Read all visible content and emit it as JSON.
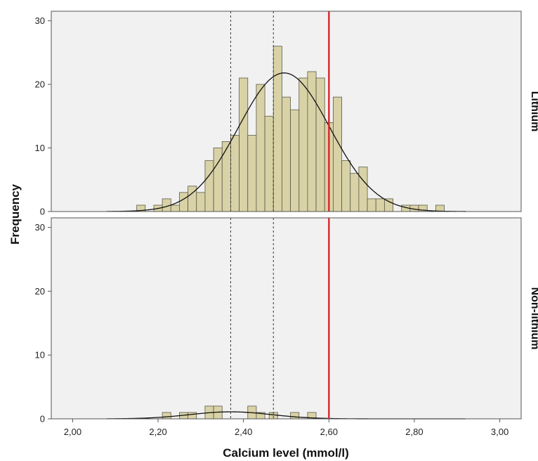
{
  "chart_data": {
    "type": "bar",
    "xlabel": "Calcium level (mmol/l)",
    "ylabel": "Frequency",
    "xlim": [
      1.95,
      3.05
    ],
    "ylim": [
      0,
      31.5
    ],
    "x_ticks": [
      2.0,
      2.2,
      2.4,
      2.6,
      2.8,
      3.0
    ],
    "x_tick_labels": [
      "2,00",
      "2,20",
      "2,40",
      "2,60",
      "2,80",
      "3,00"
    ],
    "y_ticks": [
      0,
      10,
      20,
      30
    ],
    "y_tick_labels": [
      "0",
      "10",
      "20",
      "30"
    ],
    "bin_width": 0.02,
    "grid": false,
    "reference_lines": {
      "dashed": [
        2.37,
        2.47
      ],
      "red": [
        2.6
      ]
    },
    "colors": {
      "bar_fill": "#d9d2a6",
      "bar_stroke": "#5a5a4a",
      "panel_bg": "#f1f1f1",
      "curve": "#111111",
      "red_line": "#d8262c",
      "dashed_line": "#333333"
    },
    "panels": [
      {
        "label": "Lithium",
        "bins": [
          {
            "x": 2.16,
            "count": 1
          },
          {
            "x": 2.2,
            "count": 1
          },
          {
            "x": 2.22,
            "count": 2
          },
          {
            "x": 2.24,
            "count": 1
          },
          {
            "x": 2.26,
            "count": 3
          },
          {
            "x": 2.28,
            "count": 4
          },
          {
            "x": 2.3,
            "count": 3
          },
          {
            "x": 2.32,
            "count": 8
          },
          {
            "x": 2.34,
            "count": 10
          },
          {
            "x": 2.36,
            "count": 11
          },
          {
            "x": 2.38,
            "count": 12
          },
          {
            "x": 2.4,
            "count": 21
          },
          {
            "x": 2.42,
            "count": 12
          },
          {
            "x": 2.44,
            "count": 20
          },
          {
            "x": 2.46,
            "count": 15
          },
          {
            "x": 2.48,
            "count": 26
          },
          {
            "x": 2.5,
            "count": 18
          },
          {
            "x": 2.52,
            "count": 16
          },
          {
            "x": 2.54,
            "count": 21
          },
          {
            "x": 2.56,
            "count": 22
          },
          {
            "x": 2.58,
            "count": 21
          },
          {
            "x": 2.6,
            "count": 14
          },
          {
            "x": 2.62,
            "count": 18
          },
          {
            "x": 2.64,
            "count": 8
          },
          {
            "x": 2.66,
            "count": 6
          },
          {
            "x": 2.68,
            "count": 7
          },
          {
            "x": 2.7,
            "count": 2
          },
          {
            "x": 2.72,
            "count": 2
          },
          {
            "x": 2.74,
            "count": 2
          },
          {
            "x": 2.78,
            "count": 1
          },
          {
            "x": 2.8,
            "count": 1
          },
          {
            "x": 2.82,
            "count": 1
          },
          {
            "x": 2.86,
            "count": 1
          }
        ],
        "normal_curve": {
          "mean": 2.495,
          "sd": 0.107,
          "peak": 21.8
        }
      },
      {
        "label": "Non-lithium",
        "bins": [
          {
            "x": 2.22,
            "count": 1
          },
          {
            "x": 2.26,
            "count": 1
          },
          {
            "x": 2.28,
            "count": 1
          },
          {
            "x": 2.32,
            "count": 2
          },
          {
            "x": 2.34,
            "count": 2
          },
          {
            "x": 2.42,
            "count": 2
          },
          {
            "x": 2.44,
            "count": 1
          },
          {
            "x": 2.47,
            "count": 1
          },
          {
            "x": 2.52,
            "count": 1
          },
          {
            "x": 2.56,
            "count": 1
          }
        ],
        "normal_curve": {
          "mean": 2.37,
          "sd": 0.095,
          "peak": 1.1
        }
      }
    ]
  }
}
